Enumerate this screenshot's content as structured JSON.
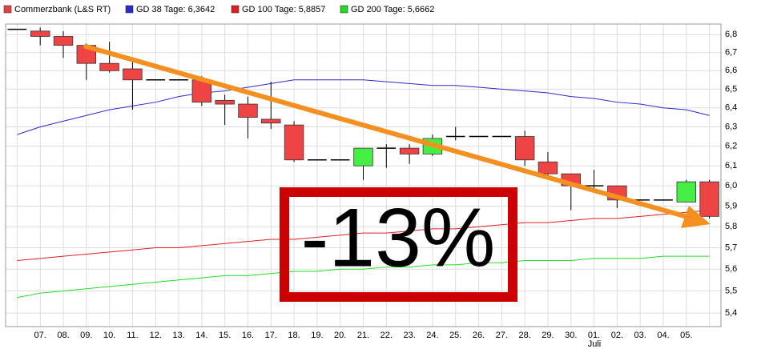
{
  "chart_data": {
    "type": "candlestick",
    "log": true,
    "grid": true,
    "categories": [
      null,
      "07.",
      "08.",
      "09.",
      "10.",
      "11.",
      "12.",
      "13.",
      "14.",
      "15.",
      "16.",
      "17.",
      "18.",
      "19.",
      "20.",
      "21.",
      "22.",
      "23.",
      "24.",
      "25.",
      "26.",
      "27.",
      "28.",
      "29.",
      "30.",
      "01.",
      "02.",
      "03.",
      "04.",
      "05.",
      null
    ],
    "month_label": "Juli",
    "annotation": "-13%",
    "ylim": [
      5.34,
      6.86
    ],
    "yticks": [
      {
        "value": 5.4,
        "label": "5,4"
      },
      {
        "value": 5.5,
        "label": "5,5"
      },
      {
        "value": 5.6,
        "label": "5,6"
      },
      {
        "value": 5.7,
        "label": "5,7"
      },
      {
        "value": 5.8,
        "label": "5,8"
      },
      {
        "value": 5.9,
        "label": "5,9"
      },
      {
        "value": 6.0,
        "label": "6,0"
      },
      {
        "value": 6.1,
        "label": "6,1"
      },
      {
        "value": 6.2,
        "label": "6,2"
      },
      {
        "value": 6.3,
        "label": "6,3"
      },
      {
        "value": 6.4,
        "label": "6,4"
      },
      {
        "value": 6.5,
        "label": "6,5"
      },
      {
        "value": 6.6,
        "label": "6,6"
      },
      {
        "value": 6.7,
        "label": "6,7"
      },
      {
        "value": 6.8,
        "label": "6,8"
      }
    ],
    "series": [
      {
        "name": "Commerzbank (L&S RT)",
        "type": "candlestick",
        "color": "#e84040",
        "up_color": "#44ee44",
        "down_color": "#ee4444",
        "open": [
          6.83,
          6.82,
          6.79,
          6.74,
          6.64,
          6.61,
          6.55,
          6.55,
          6.55,
          6.44,
          6.42,
          6.34,
          6.31,
          6.13,
          6.13,
          6.1,
          6.19,
          6.19,
          6.16,
          6.25,
          6.25,
          6.25,
          6.25,
          6.12,
          6.06,
          6.0,
          6.0,
          5.93,
          5.93,
          5.92,
          6.02
        ],
        "high": [
          6.83,
          6.84,
          6.82,
          6.75,
          6.76,
          6.65,
          6.55,
          6.55,
          6.57,
          6.47,
          6.46,
          6.54,
          6.33,
          6.13,
          6.13,
          6.19,
          6.21,
          6.21,
          6.26,
          6.3,
          6.25,
          6.25,
          6.28,
          6.17,
          6.06,
          6.08,
          6.0,
          5.93,
          5.93,
          6.03,
          6.03
        ],
        "low": [
          6.83,
          6.74,
          6.67,
          6.55,
          6.59,
          6.39,
          6.55,
          6.55,
          6.41,
          6.31,
          6.24,
          6.29,
          6.12,
          6.13,
          6.13,
          6.03,
          6.09,
          6.11,
          6.15,
          6.23,
          6.25,
          6.25,
          6.1,
          6.05,
          5.88,
          5.98,
          5.89,
          5.93,
          5.93,
          5.92,
          5.84
        ],
        "close": [
          6.83,
          6.79,
          6.74,
          6.64,
          6.6,
          6.55,
          6.55,
          6.55,
          6.43,
          6.42,
          6.35,
          6.32,
          6.13,
          6.13,
          6.13,
          6.19,
          6.19,
          6.16,
          6.24,
          6.25,
          6.25,
          6.25,
          6.13,
          6.06,
          6.0,
          6.0,
          5.93,
          5.93,
          5.93,
          6.02,
          5.85
        ]
      },
      {
        "name": "GD 38 Tage: 6,3642",
        "type": "line",
        "color": "#2a2ad0",
        "values": [
          6.26,
          6.3,
          6.33,
          6.36,
          6.39,
          6.41,
          6.43,
          6.46,
          6.48,
          6.49,
          6.51,
          6.53,
          6.55,
          6.55,
          6.55,
          6.55,
          6.54,
          6.53,
          6.52,
          6.52,
          6.51,
          6.5,
          6.49,
          6.48,
          6.46,
          6.45,
          6.43,
          6.42,
          6.4,
          6.39,
          6.36
        ]
      },
      {
        "name": "GD 100 Tage: 5,8857",
        "type": "line",
        "color": "#e02020",
        "values": [
          5.64,
          5.65,
          5.66,
          5.67,
          5.68,
          5.69,
          5.7,
          5.7,
          5.71,
          5.72,
          5.73,
          5.74,
          5.74,
          5.75,
          5.76,
          5.77,
          5.77,
          5.78,
          5.79,
          5.79,
          5.8,
          5.81,
          5.82,
          5.82,
          5.83,
          5.84,
          5.84,
          5.85,
          5.86,
          5.87,
          5.88
        ]
      },
      {
        "name": "GD 200 Tage: 5,6662",
        "type": "line",
        "color": "#22dd22",
        "values": [
          5.47,
          5.49,
          5.5,
          5.51,
          5.52,
          5.53,
          5.54,
          5.55,
          5.56,
          5.57,
          5.57,
          5.58,
          5.59,
          5.59,
          5.6,
          5.6,
          5.61,
          5.61,
          5.62,
          5.62,
          5.63,
          5.63,
          5.64,
          5.64,
          5.64,
          5.65,
          5.65,
          5.65,
          5.66,
          5.66,
          5.66
        ]
      }
    ]
  }
}
